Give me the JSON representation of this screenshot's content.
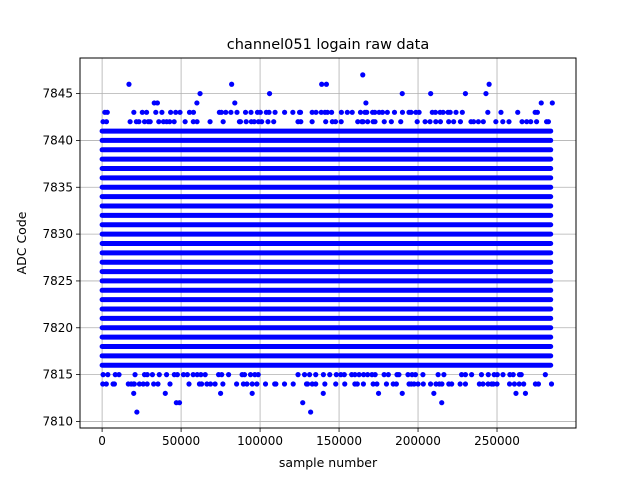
{
  "chart_data": {
    "type": "scatter",
    "title": "channel051 logain raw data",
    "xlabel": "sample number",
    "ylabel": "ADC Code",
    "xlim": [
      -14000,
      300000
    ],
    "ylim": [
      7809.3,
      7848.8
    ],
    "xticks": [
      0,
      50000,
      100000,
      150000,
      200000,
      250000
    ],
    "xtick_labels": [
      "0",
      "50000",
      "100000",
      "150000",
      "200000",
      "250000"
    ],
    "yticks": [
      7810,
      7815,
      7820,
      7825,
      7830,
      7835,
      7840,
      7845
    ],
    "ytick_labels": [
      "7810",
      "7815",
      "7820",
      "7825",
      "7830",
      "7835",
      "7840",
      "7845"
    ],
    "grid": true,
    "marker_color": "#0000ff",
    "x_range": [
      0,
      284000
    ],
    "dense_band": [
      7814,
      7843
    ],
    "series": [
      {
        "x": [
          17000,
          62000,
          82000,
          165000,
          245000,
          22000,
          49000,
          47000,
          132000,
          127000,
          215000,
          106000,
          139000,
          142000,
          190000,
          208000,
          230000,
          243000,
          35000,
          33000,
          84000,
          125000,
          60000,
          167000,
          278000,
          285000,
          20000,
          40000,
          190000,
          210000,
          20000,
          55000,
          75000,
          95000,
          110000,
          140000,
          160000,
          175000,
          180000,
          200000,
          230000,
          250000,
          262000,
          268000
        ],
        "y": [
          7846,
          7845,
          7846,
          7847,
          7846,
          7811,
          7812,
          7812,
          7811,
          7812,
          7812,
          7845,
          7846,
          7846,
          7845,
          7845,
          7845,
          7845,
          7844,
          7844,
          7844,
          7843,
          7844,
          7844,
          7844,
          7844,
          7813,
          7813,
          7813,
          7813,
          7814,
          7814,
          7813,
          7813,
          7814,
          7813,
          7814,
          7813,
          7814,
          7814,
          7814,
          7814,
          7813,
          7813
        ]
      }
    ]
  }
}
